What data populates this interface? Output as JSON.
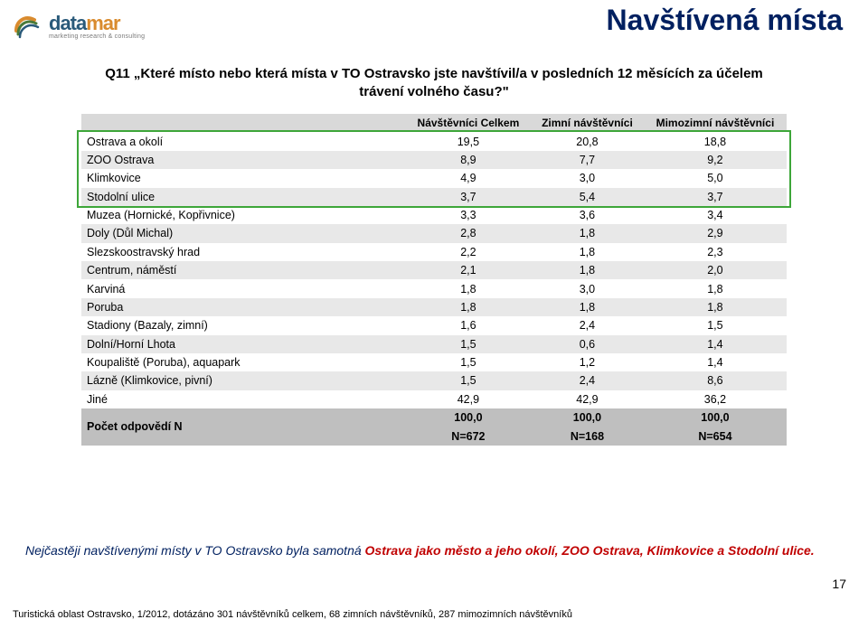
{
  "logo": {
    "word_prefix": "data",
    "word_suffix": "mar",
    "tagline": "marketing research & consulting",
    "colors": {
      "orange": "#d98b2e",
      "blue": "#2a5a7a",
      "green": "#4a7a3a"
    }
  },
  "page_title": "Navštívená místa",
  "question": "Q11 „Které místo nebo která místa v TO Ostravsko jste navštívil/a v posledních 12 měsících za účelem trávení volného času?\"",
  "table": {
    "columns": [
      {
        "label": "Návštěvníci Celkem"
      },
      {
        "label": "Zimní návštěvníci"
      },
      {
        "label": "Mimozimní návštěvníci"
      }
    ],
    "rows": [
      {
        "label": "Ostrava a okolí",
        "vals": [
          "19,5",
          "20,8",
          "18,8"
        ]
      },
      {
        "label": "ZOO Ostrava",
        "vals": [
          "8,9",
          "7,7",
          "9,2"
        ]
      },
      {
        "label": "Klimkovice",
        "vals": [
          "4,9",
          "3,0",
          "5,0"
        ]
      },
      {
        "label": "Stodolní ulice",
        "vals": [
          "3,7",
          "5,4",
          "3,7"
        ]
      },
      {
        "label": "Muzea (Hornické, Kopřivnice)",
        "vals": [
          "3,3",
          "3,6",
          "3,4"
        ]
      },
      {
        "label": "Doly (Důl Michal)",
        "vals": [
          "2,8",
          "1,8",
          "2,9"
        ]
      },
      {
        "label": "Slezskoostravský hrad",
        "vals": [
          "2,2",
          "1,8",
          "2,3"
        ]
      },
      {
        "label": "Centrum, náměstí",
        "vals": [
          "2,1",
          "1,8",
          "2,0"
        ]
      },
      {
        "label": "Karviná",
        "vals": [
          "1,8",
          "3,0",
          "1,8"
        ]
      },
      {
        "label": "Poruba",
        "vals": [
          "1,8",
          "1,8",
          "1,8"
        ]
      },
      {
        "label": "Stadiony (Bazaly, zimní)",
        "vals": [
          "1,6",
          "2,4",
          "1,5"
        ]
      },
      {
        "label": "Dolní/Horní Lhota",
        "vals": [
          "1,5",
          "0,6",
          "1,4"
        ]
      },
      {
        "label": "Koupaliště (Poruba), aquapark",
        "vals": [
          "1,5",
          "1,2",
          "1,4"
        ]
      },
      {
        "label": "Lázně (Klimkovice, pivní)",
        "vals": [
          "1,5",
          "2,4",
          "8,6"
        ]
      },
      {
        "label": "Jiné",
        "vals": [
          "42,9",
          "42,9",
          "36,2"
        ]
      }
    ],
    "totals": {
      "label": "Počet odpovědí N",
      "row1": [
        "100,0",
        "100,0",
        "100,0"
      ],
      "row2": [
        "N=672",
        "N=168",
        "N=654"
      ]
    },
    "header_bg": "#d9d9d9",
    "row_even_bg": "#e8e8e8",
    "row_odd_bg": "#ffffff",
    "totals_bg": "#bfbfbf",
    "highlight_color": "#3da639"
  },
  "summary": {
    "prefix": "Nejčastěji navštívenými místy v TO Ostravsko byla samotná ",
    "strong": "Ostrava jako město a jeho okolí, ZOO Ostrava, Klimkovice a Stodolní ulice.",
    "blue_color": "#002060",
    "red_color": "#c00000"
  },
  "page_number": "17",
  "footer": "Turistická oblast Ostravsko, 1/2012, dotázáno 301 návštěvníků celkem, 68 zimních návštěvníků, 287 mimozimních návštěvníků"
}
